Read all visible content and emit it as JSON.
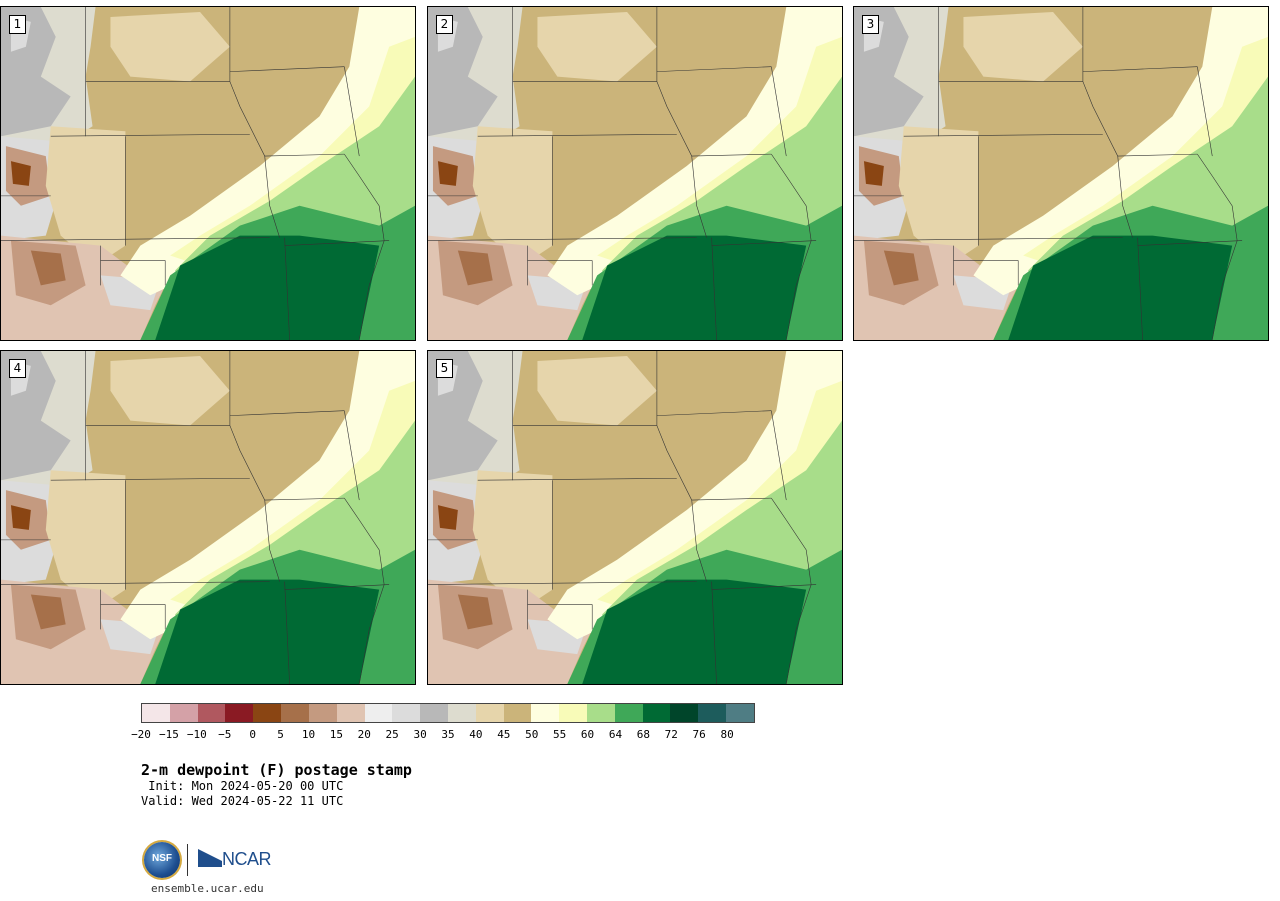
{
  "panels": [
    {
      "label": "1"
    },
    {
      "label": "2"
    },
    {
      "label": "3"
    },
    {
      "label": "4"
    },
    {
      "label": "5"
    }
  ],
  "colorbar": {
    "colors": [
      "#f4e6e8",
      "#d4a1a7",
      "#b0585f",
      "#8a1a23",
      "#8a4513",
      "#a6704a",
      "#c49a80",
      "#e0c4b2",
      "#eeeeee",
      "#dcdcdc",
      "#b8b8b8",
      "#dddccf",
      "#e6d5ab",
      "#cbb47a",
      "#fefee0",
      "#f8fbb8",
      "#a8dd8a",
      "#3fa858",
      "#006a34",
      "#00452a",
      "#1d5c5c",
      "#4f7d84"
    ],
    "tick_labels": [
      "−20",
      "−15",
      "−10",
      "−5",
      "0",
      "5",
      "10",
      "15",
      "20",
      "25",
      "30",
      "35",
      "40",
      "45",
      "50",
      "55",
      "60",
      "64",
      "68",
      "72",
      "76",
      "80"
    ]
  },
  "title": "2-m dewpoint (F) postage stamp",
  "init": " Init: Mon 2024-05-20 00 UTC",
  "valid": "Valid: Wed 2024-05-22 11 UTC",
  "logos": {
    "nsf": "NSF",
    "ncar": "NCAR"
  },
  "footer_url": "ensemble.ucar.edu"
}
